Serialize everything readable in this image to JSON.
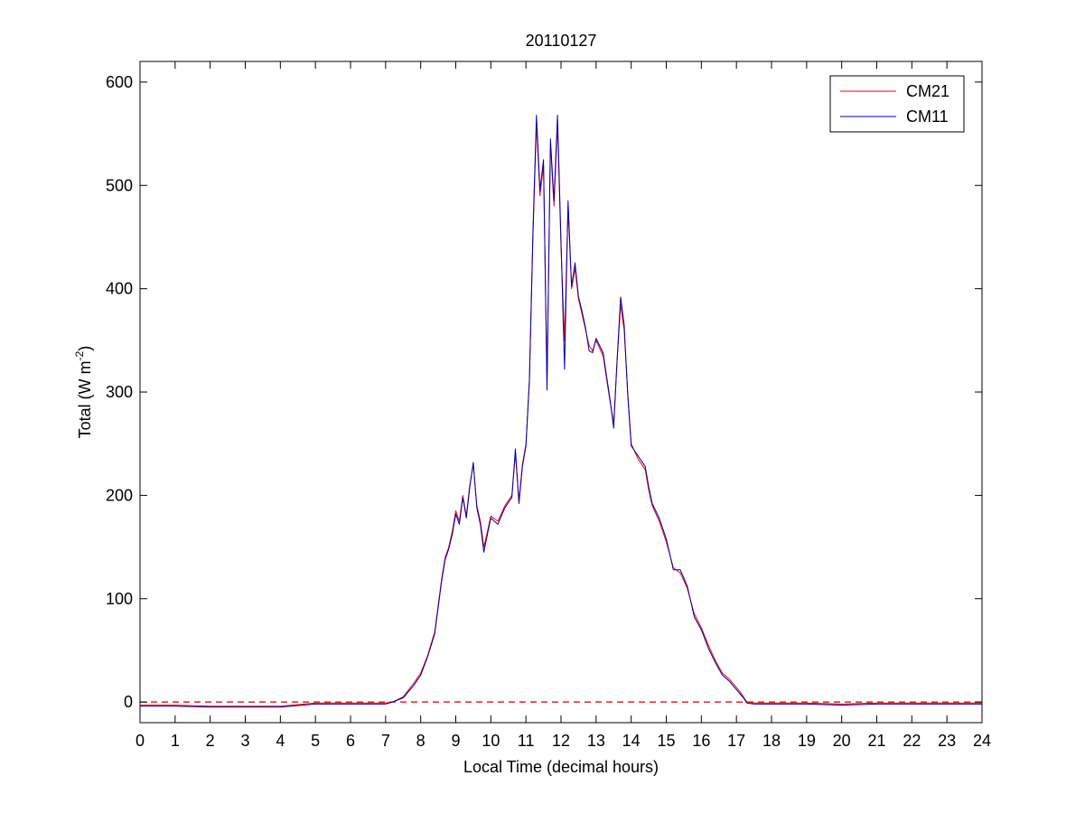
{
  "chart_data": {
    "type": "line",
    "title": "20110127",
    "xlabel": "Local Time (decimal hours)",
    "ylabel": "Total (W m",
    "ylabel_sup": "-2",
    "ylabel_tail": ")",
    "xlim": [
      0,
      24
    ],
    "ylim": [
      -20,
      620
    ],
    "xticks": [
      0,
      1,
      2,
      3,
      4,
      5,
      6,
      7,
      8,
      9,
      10,
      11,
      12,
      13,
      14,
      15,
      16,
      17,
      18,
      19,
      20,
      21,
      22,
      23,
      24
    ],
    "yticks": [
      0,
      100,
      200,
      300,
      400,
      500,
      600
    ],
    "grid": false,
    "legend_position": "top-right",
    "reference_line": {
      "y": 0,
      "style": "dashed",
      "color": "#cc0000"
    },
    "series": [
      {
        "name": "CM21",
        "color": "#ff0000",
        "x": [
          0,
          1,
          2,
          3,
          4,
          5,
          6,
          7,
          7.2,
          7.5,
          7.8,
          8.0,
          8.2,
          8.4,
          8.6,
          8.7,
          8.8,
          8.9,
          9.0,
          9.1,
          9.2,
          9.3,
          9.4,
          9.5,
          9.6,
          9.7,
          9.8,
          9.9,
          10.0,
          10.2,
          10.4,
          10.6,
          10.7,
          10.8,
          10.9,
          11.0,
          11.1,
          11.2,
          11.3,
          11.4,
          11.5,
          11.6,
          11.7,
          11.8,
          11.9,
          12.0,
          12.1,
          12.2,
          12.3,
          12.4,
          12.5,
          12.6,
          12.7,
          12.8,
          12.9,
          13.0,
          13.2,
          13.4,
          13.5,
          13.6,
          13.7,
          13.8,
          13.9,
          14.0,
          14.2,
          14.4,
          14.5,
          14.6,
          14.8,
          15.0,
          15.2,
          15.4,
          15.6,
          15.8,
          16.0,
          16.2,
          16.4,
          16.6,
          16.8,
          17.0,
          17.1,
          17.2,
          17.3,
          17.5,
          18,
          19,
          20,
          21,
          22,
          23,
          24
        ],
        "y": [
          -3,
          -3,
          -4,
          -4,
          -4,
          -1,
          -1,
          -1,
          0,
          5,
          18,
          28,
          45,
          68,
          120,
          140,
          150,
          165,
          185,
          175,
          200,
          180,
          210,
          230,
          190,
          175,
          150,
          165,
          180,
          175,
          190,
          200,
          240,
          195,
          230,
          250,
          310,
          450,
          560,
          490,
          520,
          310,
          540,
          480,
          560,
          440,
          350,
          480,
          400,
          420,
          390,
          375,
          360,
          345,
          340,
          350,
          335,
          290,
          270,
          330,
          385,
          360,
          300,
          250,
          235,
          225,
          205,
          190,
          175,
          155,
          130,
          125,
          110,
          85,
          72,
          55,
          40,
          28,
          22,
          14,
          10,
          5,
          0,
          -1,
          -1,
          -1,
          -2,
          -1,
          -1,
          -1,
          -1
        ]
      },
      {
        "name": "CM11",
        "color": "#0000aa",
        "x": [
          0,
          1,
          2,
          3,
          4,
          5,
          6,
          7,
          7.2,
          7.5,
          7.8,
          8.0,
          8.2,
          8.4,
          8.6,
          8.7,
          8.8,
          8.9,
          9.0,
          9.1,
          9.2,
          9.3,
          9.4,
          9.5,
          9.6,
          9.7,
          9.8,
          9.9,
          10.0,
          10.2,
          10.4,
          10.6,
          10.7,
          10.8,
          10.9,
          11.0,
          11.1,
          11.2,
          11.3,
          11.4,
          11.5,
          11.6,
          11.7,
          11.8,
          11.9,
          12.0,
          12.1,
          12.2,
          12.3,
          12.4,
          12.5,
          12.6,
          12.7,
          12.8,
          12.9,
          13.0,
          13.2,
          13.4,
          13.5,
          13.6,
          13.7,
          13.8,
          13.9,
          14.0,
          14.2,
          14.4,
          14.5,
          14.6,
          14.8,
          15.0,
          15.2,
          15.4,
          15.6,
          15.8,
          16.0,
          16.2,
          16.4,
          16.6,
          16.8,
          17.0,
          17.1,
          17.2,
          17.3,
          17.5,
          18,
          19,
          20,
          21,
          22,
          23,
          24
        ],
        "y": [
          -4,
          -4,
          -5,
          -5,
          -5,
          -2,
          -2,
          -2,
          0,
          4,
          16,
          26,
          44,
          66,
          118,
          138,
          148,
          162,
          182,
          172,
          198,
          178,
          208,
          232,
          188,
          172,
          145,
          162,
          178,
          172,
          188,
          198,
          245,
          192,
          228,
          248,
          312,
          455,
          568,
          495,
          525,
          302,
          545,
          485,
          568,
          445,
          322,
          485,
          402,
          425,
          392,
          378,
          362,
          340,
          338,
          352,
          338,
          292,
          265,
          332,
          392,
          365,
          298,
          248,
          238,
          228,
          208,
          192,
          178,
          158,
          128,
          128,
          112,
          82,
          70,
          52,
          38,
          26,
          20,
          12,
          8,
          4,
          -1,
          -2,
          -2,
          -2,
          -3,
          -2,
          -2,
          -2,
          -2
        ]
      }
    ]
  }
}
